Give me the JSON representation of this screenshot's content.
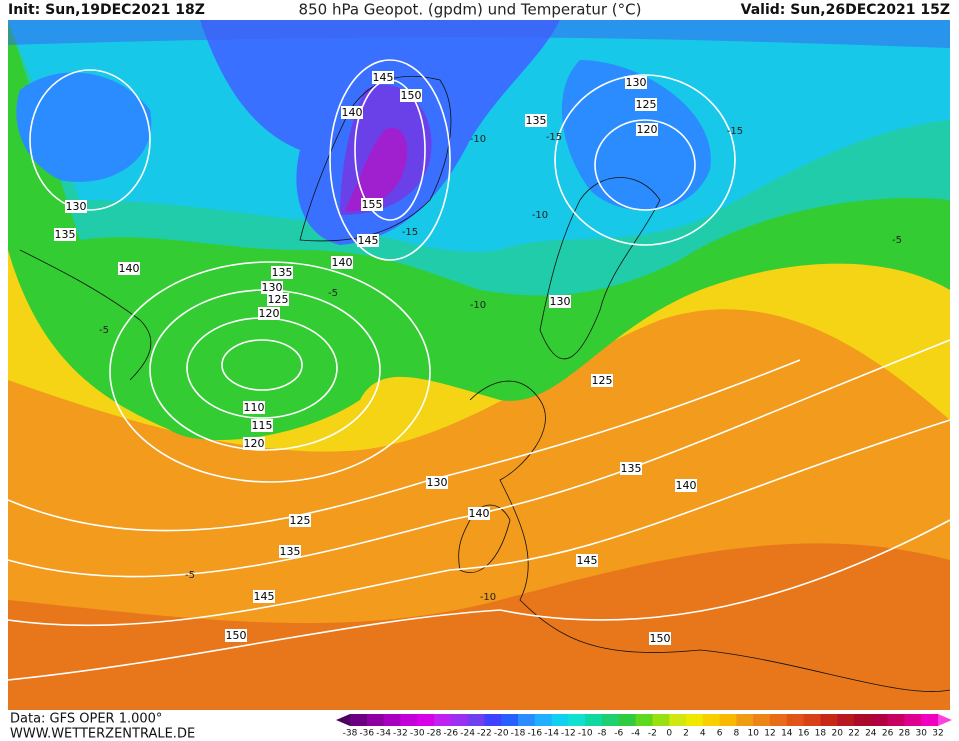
{
  "header": {
    "init": "Init: Sun,19DEC2021  18Z",
    "title": "850 hPa Geopot. (gpdm) und Temperatur (°C)",
    "valid": "Valid: Sun,26DEC2021  15Z"
  },
  "footer": {
    "data": "Data: GFS OPER 1.000°",
    "site": "WWW.WETTERZENTRALE.DE"
  },
  "geopotential_labels": [
    145,
    150,
    140,
    155,
    145,
    140,
    130,
    135,
    140,
    135,
    130,
    125,
    120,
    110,
    115,
    120,
    130,
    125,
    120,
    135,
    130,
    125,
    135,
    140,
    130,
    140,
    125,
    135,
    145,
    145,
    150,
    150
  ],
  "temperature_labels": [
    -10,
    -15,
    -15,
    -5,
    -10,
    -15,
    -5,
    -10,
    -5,
    -5,
    -10
  ],
  "colorbar": {
    "labels": [
      -38,
      -36,
      -34,
      -32,
      -30,
      -28,
      -26,
      -24,
      -22,
      -20,
      -18,
      -16,
      -14,
      -12,
      -10,
      -8,
      -6,
      -4,
      -2,
      0,
      2,
      4,
      6,
      8,
      10,
      12,
      14,
      16,
      18,
      20,
      22,
      24,
      26,
      28,
      30,
      32
    ],
    "colors": [
      "#4b0060",
      "#6a0080",
      "#8c00a0",
      "#a800c0",
      "#c400d8",
      "#d800e8",
      "#c020f0",
      "#9a30f0",
      "#7040f0",
      "#4040ff",
      "#2860ff",
      "#2a8cff",
      "#20b0ff",
      "#10d0f0",
      "#10e0d0",
      "#10d8a0",
      "#20d070",
      "#30cc40",
      "#60d820",
      "#98e010",
      "#d0e810",
      "#f0e800",
      "#f8d000",
      "#f8b800",
      "#f09c10",
      "#ec8418",
      "#e86c18",
      "#e05418",
      "#d84018",
      "#c82818",
      "#b81820",
      "#a80c28",
      "#b00040",
      "#c80060",
      "#e00090",
      "#f000c0",
      "#ff40e0"
    ]
  }
}
